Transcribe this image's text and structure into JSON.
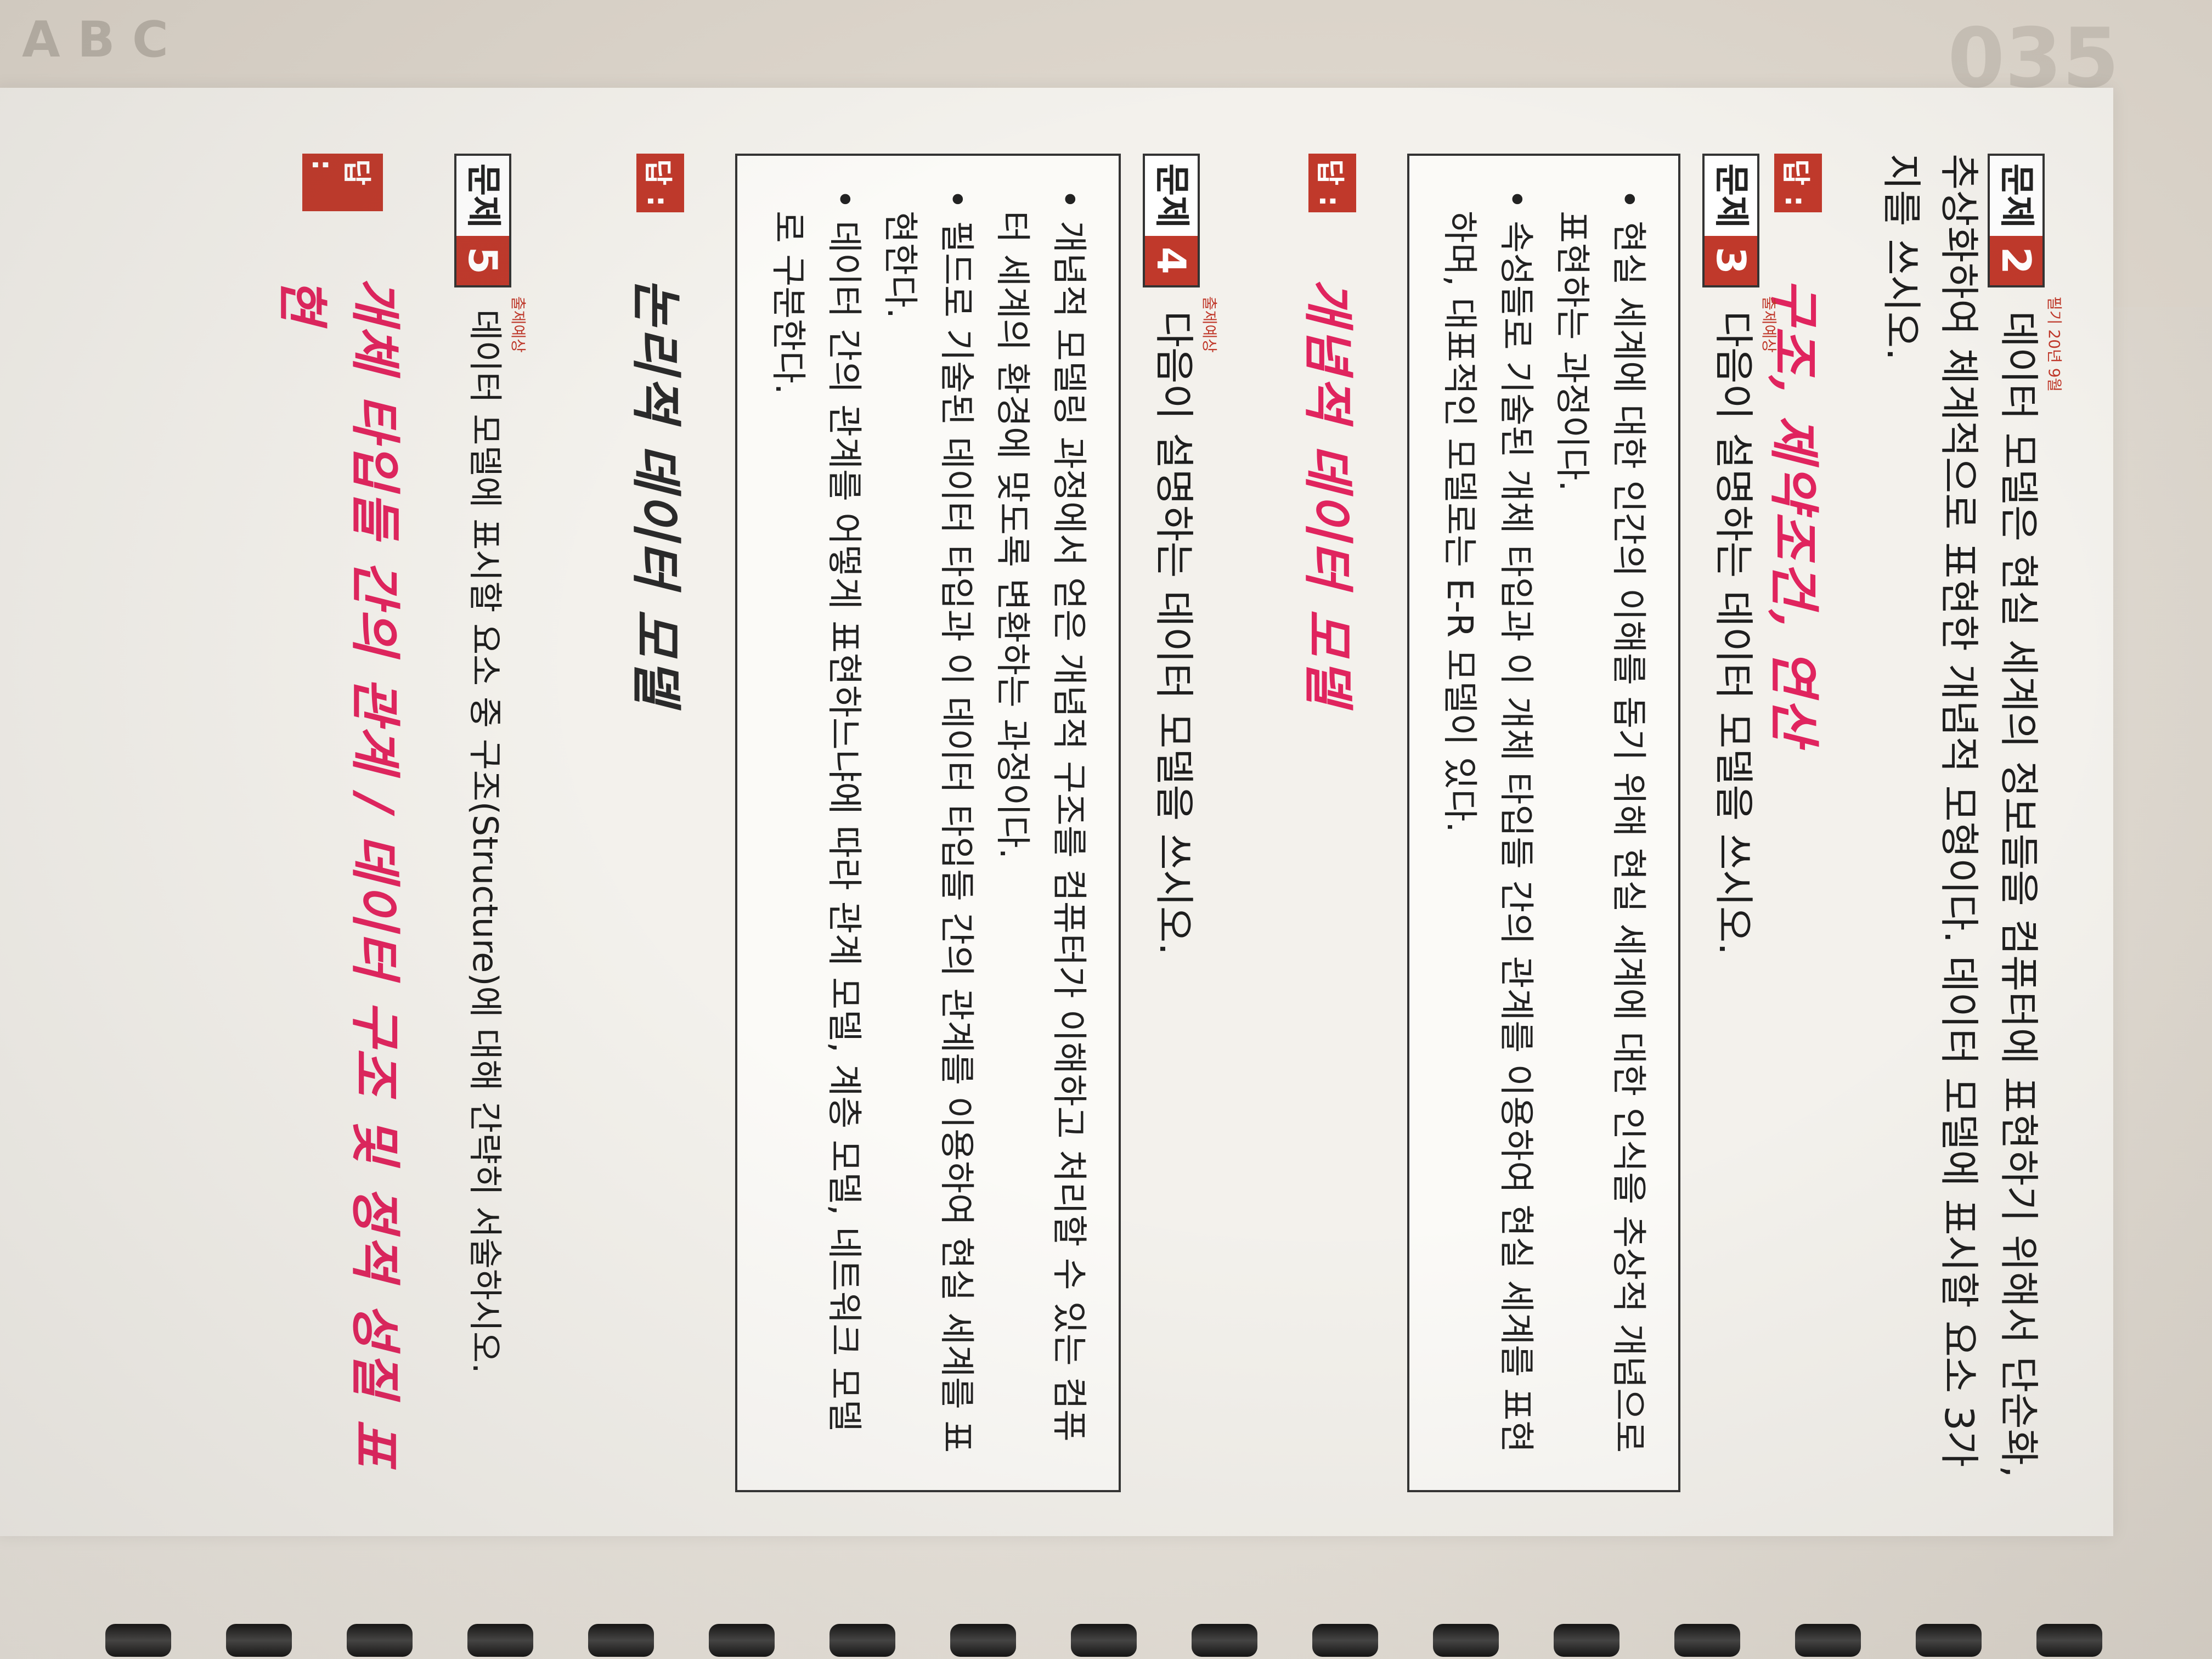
{
  "problems": [
    {
      "label": "문제",
      "number": "2",
      "tag": "필기 20년 9월",
      "question": "데이터 모델은 현실 세계의 정보들을 컴퓨터에 표현하기 위해서 단순화, 추상화하여 체계적으로 표현한 개념적 모형이다. 데이터 모델에 표시할 요소 3가지를 쓰시오.",
      "answer_label": "답 :",
      "answer": "구조, 제약조건, 연산"
    },
    {
      "label": "문제",
      "number": "3",
      "tag": "출제예상",
      "question": "다음이 설명하는 데이터 모델을 쓰시오.",
      "box_items": [
        "• 현실 세계에 대한 인간의 이해를 돕기 위해 현실 세계에 대한 인식을 추상적 개념으로 표현하는 과정이다.",
        "• 속성들로 기술된 개체 타입과 이 개체 타입들 간의 관계를 이용하여 현실 세계를 표현하며, 대표적인 모델로는 E-R 모델이 있다."
      ],
      "answer_label": "답 :",
      "answer": "개념적 데이터 모델"
    },
    {
      "label": "문제",
      "number": "4",
      "tag": "출제예상",
      "question": "다음이 설명하는 데이터 모델을 쓰시오.",
      "box_items": [
        "• 개념적 모델링 과정에서 얻은 개념적 구조를 컴퓨터가 이해하고 처리할 수 있는 컴퓨터 세계의 환경에 맞도록 변환하는 과정이다.",
        "• 필드로 기술된 데이터 타입과 이 데이터 타입들 간의 관계를 이용하여 현실 세계를 표현한다.",
        "• 데이터 간의 관계를 어떻게 표현하느냐에 따라 관계 모델, 계층 모델, 네트워크 모델로 구분한다."
      ],
      "answer_label": "답 :",
      "answer": "논리적 데이터 모델"
    },
    {
      "label": "문제",
      "number": "5",
      "tag": "출제예상",
      "question": "데이터 모델에 표시할 요소 중 구조(Structure)에 대해 간략히 서술하시오.",
      "answer_label": "답 :",
      "answer": "개체 타입들 간의 관계 / 데이터 구조 및 정적 성질 표현"
    }
  ],
  "background": {
    "letters": "A B C",
    "number": "035"
  }
}
